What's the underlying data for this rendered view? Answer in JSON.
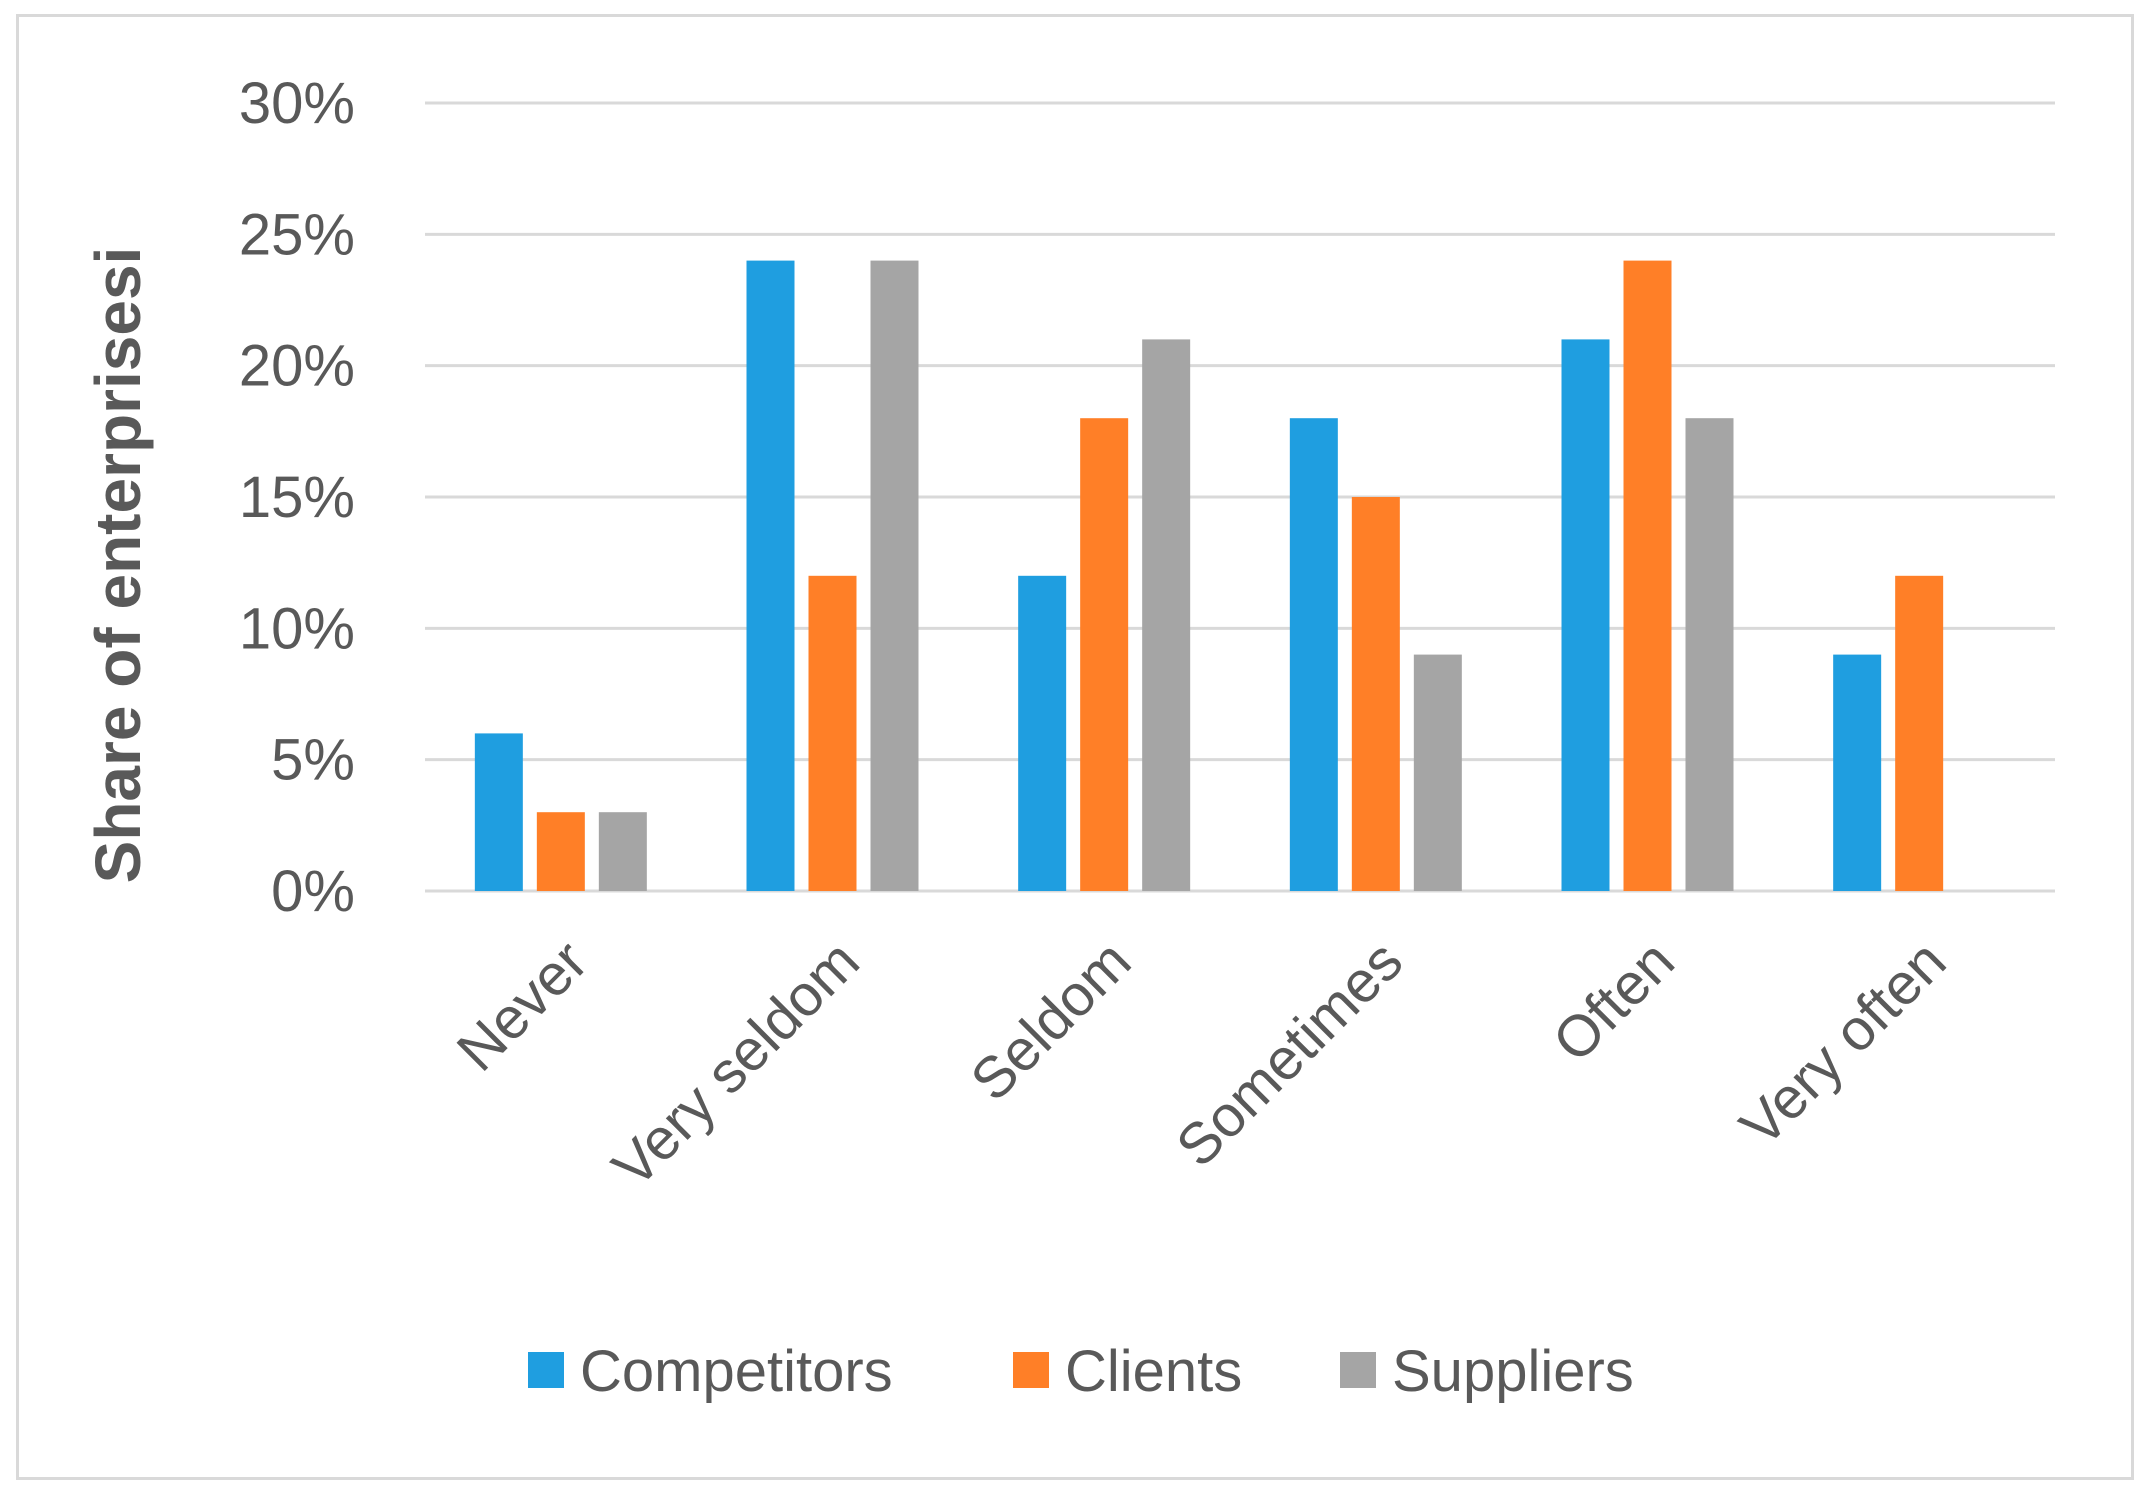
{
  "chart_data": {
    "type": "bar",
    "title": "",
    "xlabel": "",
    "ylabel": "Share of enterprisesi",
    "categories": [
      "Never",
      "Very seldom",
      "Seldom",
      "Sometimes",
      "Often",
      "Very often"
    ],
    "series": [
      {
        "name": "Competitors",
        "color": "#1f9ee0",
        "values": [
          6,
          24,
          12,
          18,
          21,
          9
        ]
      },
      {
        "name": "Clients",
        "color": "#ff7f27",
        "values": [
          3,
          12,
          18,
          15,
          24,
          12
        ]
      },
      {
        "name": "Suppliers",
        "color": "#a5a5a5",
        "values": [
          3,
          24,
          21,
          9,
          18,
          0
        ]
      }
    ],
    "yticks": [
      "0%",
      "5%",
      "10%",
      "15%",
      "20%",
      "25%",
      "30%"
    ],
    "ylim": [
      0,
      30
    ],
    "grid": true,
    "legend": "bottom"
  }
}
